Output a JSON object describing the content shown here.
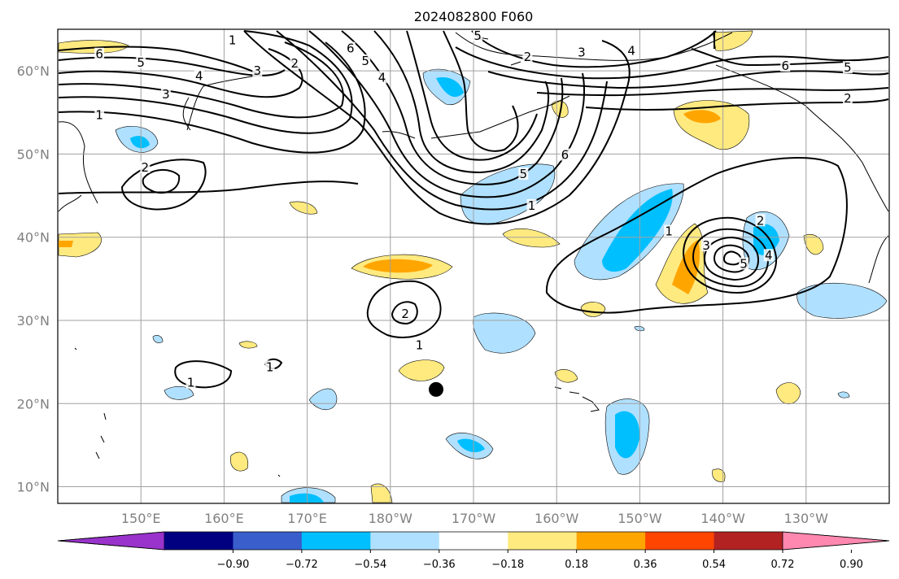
{
  "title": "2024082800 F060",
  "map": {
    "lon_range": [
      140,
      240
    ],
    "lat_range": [
      8,
      65
    ],
    "lon_ticks": [
      {
        "lon": 150,
        "label": "150°E"
      },
      {
        "lon": 160,
        "label": "160°E"
      },
      {
        "lon": 170,
        "label": "170°E"
      },
      {
        "lon": 180,
        "label": "180°W"
      },
      {
        "lon": 190,
        "label": "170°W"
      },
      {
        "lon": 200,
        "label": "160°W"
      },
      {
        "lon": 210,
        "label": "150°W"
      },
      {
        "lon": 220,
        "label": "140°W"
      },
      {
        "lon": 230,
        "label": "130°W"
      }
    ],
    "lat_ticks": [
      {
        "lat": 10,
        "label": "10°N"
      },
      {
        "lat": 20,
        "label": "20°N"
      },
      {
        "lat": 30,
        "label": "30°N"
      },
      {
        "lat": 40,
        "label": "40°N"
      },
      {
        "lat": 50,
        "label": "50°N"
      },
      {
        "lat": 60,
        "label": "60°N"
      }
    ],
    "marker": {
      "lon": 185.5,
      "lat": 21.7,
      "color": "#000000"
    },
    "contour_labels": [
      {
        "text": "1",
        "lon": 161,
        "lat": 63.5
      },
      {
        "text": "6",
        "lon": 145,
        "lat": 61.8
      },
      {
        "text": "5",
        "lon": 150,
        "lat": 60.8
      },
      {
        "text": "4",
        "lon": 157,
        "lat": 59.2
      },
      {
        "text": "3",
        "lon": 164,
        "lat": 59.8
      },
      {
        "text": "2",
        "lon": 168.5,
        "lat": 60.7
      },
      {
        "text": "3",
        "lon": 153,
        "lat": 57.0
      },
      {
        "text": "1",
        "lon": 145,
        "lat": 54.5
      },
      {
        "text": "2",
        "lon": 150.5,
        "lat": 48.2
      },
      {
        "text": "6",
        "lon": 175.2,
        "lat": 62.5
      },
      {
        "text": "5",
        "lon": 177,
        "lat": 61.0
      },
      {
        "text": "4",
        "lon": 179,
        "lat": 59.0
      },
      {
        "text": "5",
        "lon": 190.5,
        "lat": 64.0
      },
      {
        "text": "2",
        "lon": 196.5,
        "lat": 61.5
      },
      {
        "text": "3",
        "lon": 203,
        "lat": 62.0
      },
      {
        "text": "4",
        "lon": 209,
        "lat": 62.2
      },
      {
        "text": "6",
        "lon": 201,
        "lat": 49.7
      },
      {
        "text": "5",
        "lon": 196,
        "lat": 47.4
      },
      {
        "text": "1",
        "lon": 197,
        "lat": 43.6
      },
      {
        "text": "6",
        "lon": 227.5,
        "lat": 60.4
      },
      {
        "text": "5",
        "lon": 235,
        "lat": 60.2
      },
      {
        "text": "2",
        "lon": 235,
        "lat": 56.5
      },
      {
        "text": "1",
        "lon": 213.5,
        "lat": 40.5
      },
      {
        "text": "2",
        "lon": 224.5,
        "lat": 41.8
      },
      {
        "text": "3",
        "lon": 218,
        "lat": 38.8
      },
      {
        "text": "4",
        "lon": 225.5,
        "lat": 37.6
      },
      {
        "text": "5",
        "lon": 222.5,
        "lat": 36.6
      },
      {
        "text": "2",
        "lon": 181.8,
        "lat": 30.6
      },
      {
        "text": "1",
        "lon": 183.5,
        "lat": 26.8
      },
      {
        "text": "1",
        "lon": 156,
        "lat": 22.3
      },
      {
        "text": "1",
        "lon": 165.5,
        "lat": 24.2
      }
    ]
  },
  "colorbar": {
    "colors": [
      "#9933cc",
      "#000080",
      "#3a5fcd",
      "#00bfff",
      "#b0e0ff",
      "#ffffff",
      "#ffea80",
      "#ffa500",
      "#ff4500",
      "#b22222",
      "#ff88b0"
    ],
    "tick_labels": [
      "−0.90",
      "−0.72",
      "−0.54",
      "−0.36",
      "−0.18",
      "0.18",
      "0.36",
      "0.54",
      "0.72",
      "0.90"
    ]
  }
}
